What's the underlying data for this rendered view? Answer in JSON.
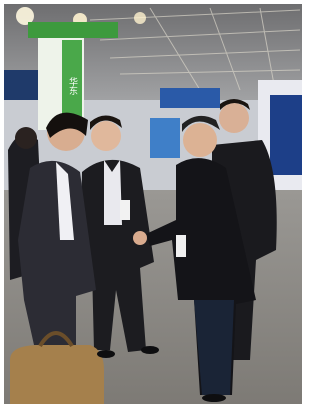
{
  "signs": {
    "pillar": "华东"
  }
}
